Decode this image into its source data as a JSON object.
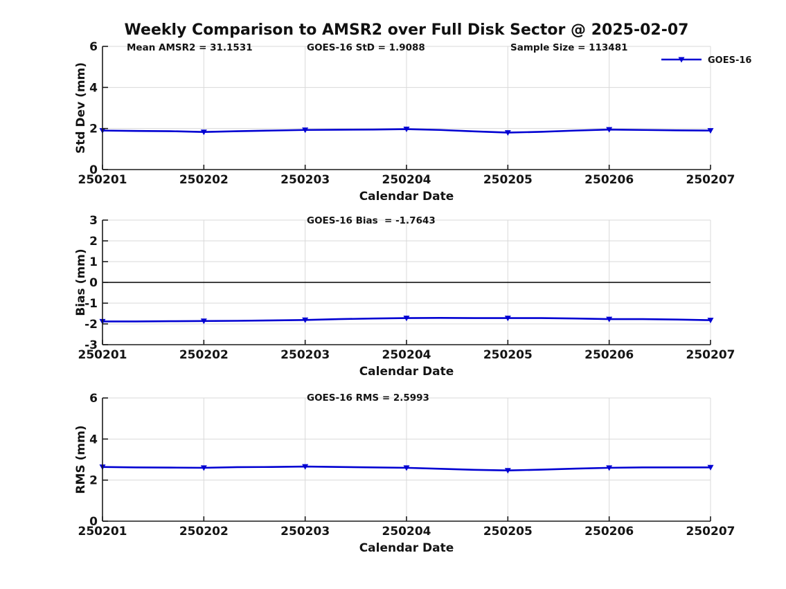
{
  "title": "Weekly Comparison to AMSR2 over Full Disk Sector @ 2025-02-07",
  "legend": {
    "label": "GOES-16",
    "color": "#0000d2"
  },
  "chart_data": [
    {
      "type": "line",
      "name": "stddev",
      "ylabel": "Std Dev (mm)",
      "xlabel": "Calendar Date",
      "ylim": [
        0,
        6
      ],
      "yticks": [
        0,
        2,
        4,
        6
      ],
      "xticklabels": [
        "250201",
        "250202",
        "250203",
        "250204",
        "250205",
        "250206",
        "250207"
      ],
      "annotations": [
        "Mean AMSR2 = 31.1531",
        "GOES-16 StD = 1.9088",
        "Sample Size = 113481"
      ],
      "grid": true,
      "zero_line": false,
      "legend_position": "top-right",
      "series": [
        {
          "name": "GOES-16",
          "color": "#0000d2",
          "x": [
            0,
            0.33,
            0.67,
            1,
            1.33,
            1.67,
            2,
            2.33,
            2.67,
            3,
            3.33,
            3.67,
            4,
            4.33,
            4.67,
            5,
            5.33,
            5.67,
            6
          ],
          "values": [
            1.9,
            1.88,
            1.87,
            1.83,
            1.87,
            1.9,
            1.93,
            1.94,
            1.95,
            1.97,
            1.93,
            1.86,
            1.8,
            1.84,
            1.9,
            1.95,
            1.93,
            1.91,
            1.9
          ]
        }
      ]
    },
    {
      "type": "line",
      "name": "bias",
      "ylabel": "Bias (mm)",
      "xlabel": "Calendar Date",
      "ylim": [
        -3,
        3
      ],
      "yticks": [
        -3,
        -2,
        -1,
        0,
        1,
        2,
        3
      ],
      "xticklabels": [
        "250201",
        "250202",
        "250203",
        "250204",
        "250205",
        "250206",
        "250207"
      ],
      "annotations": [
        "GOES-16 Bias  = -1.7643"
      ],
      "grid": true,
      "zero_line": true,
      "legend_position": "none",
      "series": [
        {
          "name": "GOES-16",
          "color": "#0000d2",
          "x": [
            0,
            0.33,
            0.67,
            1,
            1.33,
            1.67,
            2,
            2.33,
            2.67,
            3,
            3.33,
            3.67,
            4,
            4.33,
            4.67,
            5,
            5.33,
            5.67,
            6
          ],
          "values": [
            -1.88,
            -1.88,
            -1.87,
            -1.86,
            -1.85,
            -1.83,
            -1.81,
            -1.77,
            -1.74,
            -1.72,
            -1.71,
            -1.72,
            -1.72,
            -1.72,
            -1.74,
            -1.77,
            -1.77,
            -1.79,
            -1.82
          ]
        }
      ]
    },
    {
      "type": "line",
      "name": "rms",
      "ylabel": "RMS (mm)",
      "xlabel": "Calendar Date",
      "ylim": [
        0,
        6
      ],
      "yticks": [
        0,
        2,
        4,
        6
      ],
      "xticklabels": [
        "250201",
        "250202",
        "250203",
        "250204",
        "250205",
        "250206",
        "250207"
      ],
      "annotations": [
        "GOES-16 RMS = 2.5993"
      ],
      "grid": true,
      "zero_line": false,
      "legend_position": "none",
      "series": [
        {
          "name": "GOES-16",
          "color": "#0000d2",
          "x": [
            0,
            0.33,
            0.67,
            1,
            1.33,
            1.67,
            2,
            2.33,
            2.67,
            3,
            3.33,
            3.67,
            4,
            4.33,
            4.67,
            5,
            5.33,
            5.67,
            6
          ],
          "values": [
            2.64,
            2.62,
            2.61,
            2.6,
            2.63,
            2.64,
            2.66,
            2.64,
            2.62,
            2.6,
            2.55,
            2.5,
            2.47,
            2.51,
            2.56,
            2.6,
            2.62,
            2.62,
            2.62
          ]
        }
      ]
    }
  ]
}
